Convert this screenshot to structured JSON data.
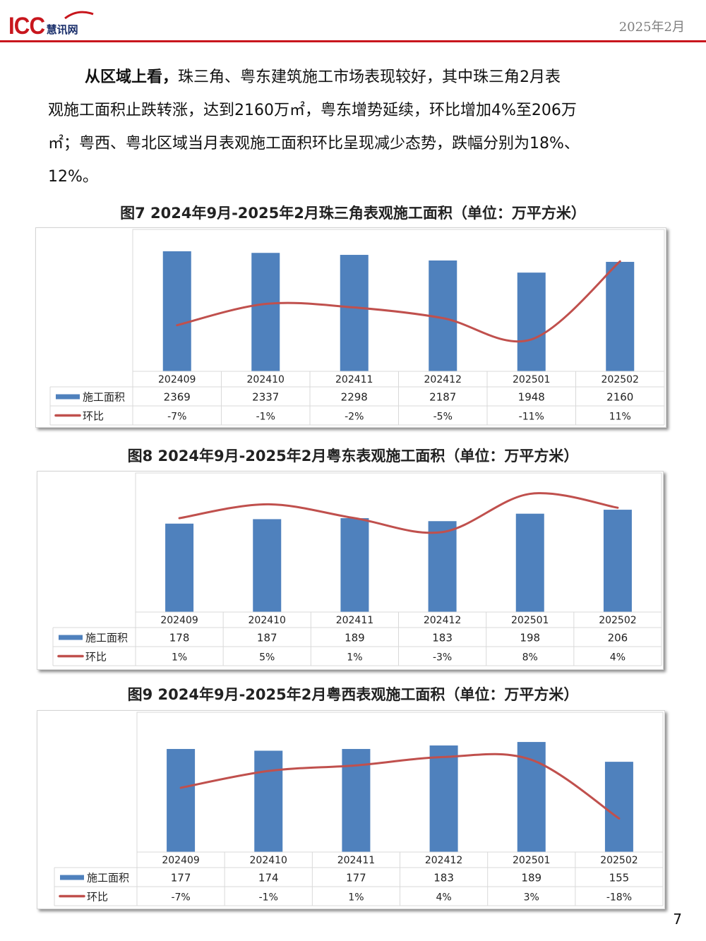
{
  "header": {
    "logo_text": "ICC",
    "logo_subtext": "慧讯网",
    "date": "2025年2月",
    "accent_color": "#c8161d"
  },
  "paragraph": {
    "lead_bold": "从区域上看，",
    "line1_rest": "珠三角、粤东建筑施工市场表现较好，其中珠三角2月表",
    "line2": "观施工面积止跌转涨，达到2160万㎡，粤东增势延续，环比增加4%至206万",
    "line3": "㎡；粤西、粤北区域当月表观施工面积环比呈现减少态势，跌幅分别为18%、",
    "line4": "12%。"
  },
  "chart_data": [
    {
      "type": "bar",
      "title": "图7  2024年9月-2025年2月珠三角表观施工面积（单位：万平方米）",
      "categories": [
        "202409",
        "202410",
        "202411",
        "202412",
        "202501",
        "202502"
      ],
      "series": [
        {
          "name": "施工面积",
          "type": "bar",
          "color": "#4f81bd",
          "values": [
            2369,
            2337,
            2298,
            2187,
            1948,
            2160
          ],
          "labels": [
            "2369",
            "2337",
            "2298",
            "2187",
            "1948",
            "2160"
          ]
        },
        {
          "name": "环比",
          "type": "line",
          "color": "#c0504d",
          "values": [
            -7,
            -1,
            -2,
            -5,
            -11,
            11
          ],
          "labels": [
            "-7%",
            "-1%",
            "-2%",
            "-5%",
            "-11%",
            "11%"
          ]
        }
      ],
      "ylim": [
        0,
        2800
      ],
      "line_ylim": [
        -20,
        20
      ],
      "data_table": true,
      "grid": false
    },
    {
      "type": "bar",
      "title": "图8  2024年9月-2025年2月粤东表观施工面积（单位：万平方米）",
      "categories": [
        "202409",
        "202410",
        "202411",
        "202412",
        "202501",
        "202502"
      ],
      "series": [
        {
          "name": "施工面积",
          "type": "bar",
          "color": "#4f81bd",
          "values": [
            178,
            187,
            189,
            183,
            198,
            206
          ],
          "labels": [
            "178",
            "187",
            "189",
            "183",
            "198",
            "206"
          ]
        },
        {
          "name": "环比",
          "type": "line",
          "color": "#c0504d",
          "values": [
            1,
            5,
            1,
            -3,
            8,
            4
          ],
          "labels": [
            "1%",
            "5%",
            "1%",
            "-3%",
            "8%",
            "4%"
          ]
        }
      ],
      "ylim": [
        0,
        280
      ],
      "line_ylim": [
        -26,
        14
      ],
      "data_table": true,
      "grid": false
    },
    {
      "type": "bar",
      "title": "图9  2024年9月-2025年2月粤西表观施工面积（单位：万平方米）",
      "categories": [
        "202409",
        "202410",
        "202411",
        "202412",
        "202501",
        "202502"
      ],
      "series": [
        {
          "name": "施工面积",
          "type": "bar",
          "color": "#4f81bd",
          "values": [
            177,
            174,
            177,
            183,
            189,
            155
          ],
          "labels": [
            "177",
            "174",
            "177",
            "183",
            "189",
            "155"
          ]
        },
        {
          "name": "环比",
          "type": "line",
          "color": "#c0504d",
          "values": [
            -7,
            -1,
            1,
            4,
            3,
            -18
          ],
          "labels": [
            "-7%",
            "-1%",
            "1%",
            "4%",
            "3%",
            "-18%"
          ]
        }
      ],
      "ylim": [
        0,
        240
      ],
      "line_ylim": [
        -30,
        20
      ],
      "data_table": true,
      "grid": false
    }
  ],
  "page_number": "7"
}
